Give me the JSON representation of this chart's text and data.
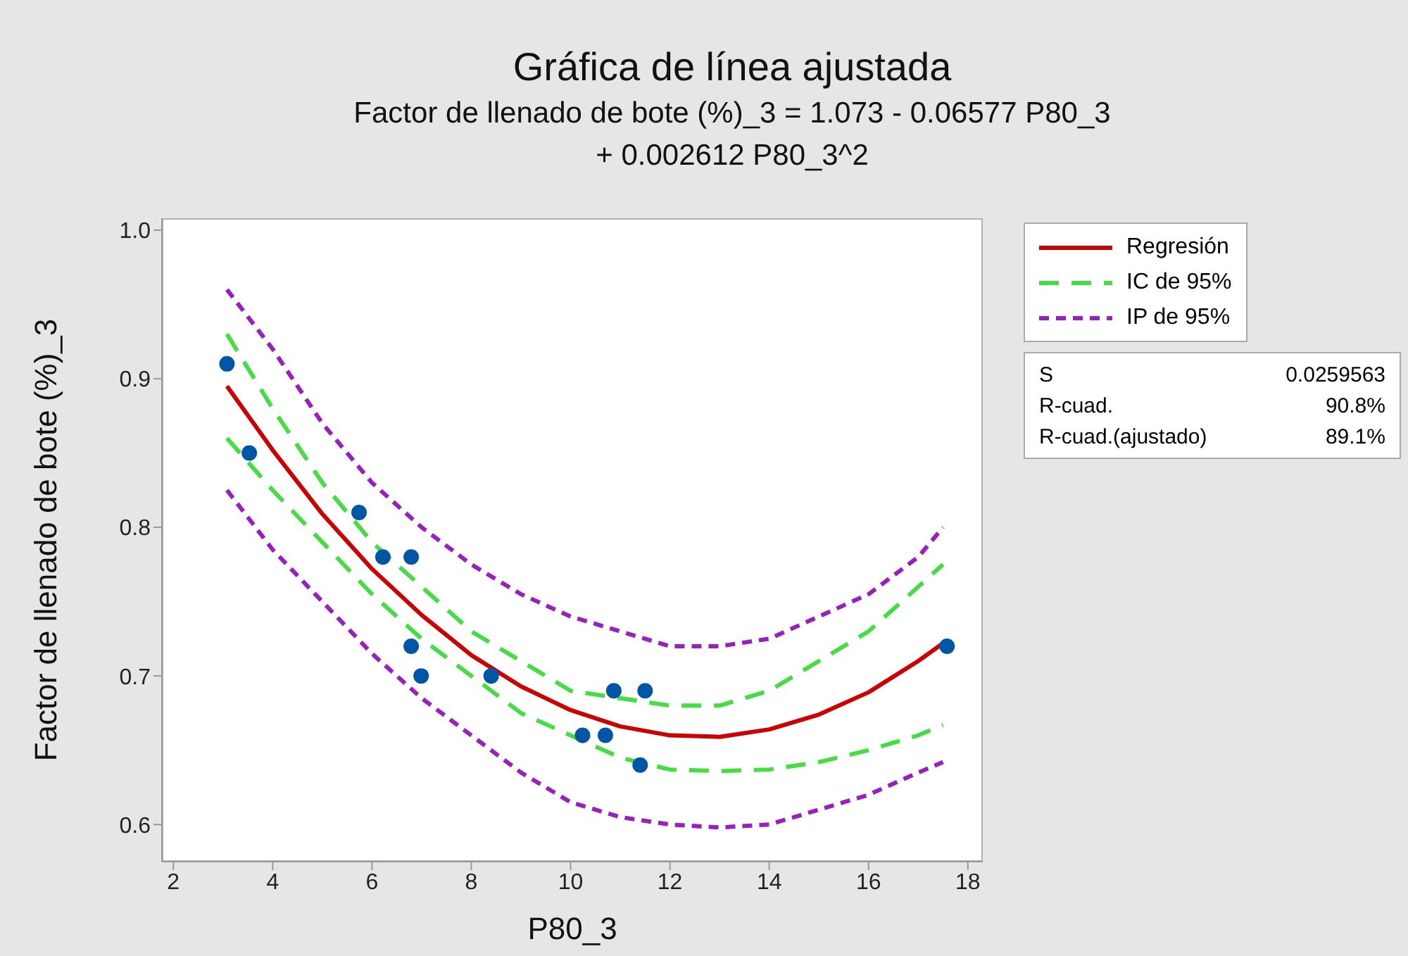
{
  "chart_data": {
    "type": "scatter",
    "title": "Gráfica de línea ajustada",
    "subtitle": "Factor de llenado de bote (%)_3 = 1.073 - 0.06577 P80_3\n+ 0.002612 P80_3^2",
    "xlabel": "P80_3",
    "ylabel": "Factor de llenado de bote (%)_3",
    "xlim": [
      1.77,
      18.3
    ],
    "xticks": [
      2,
      4,
      6,
      8,
      10,
      12,
      14,
      16,
      18
    ],
    "ylim": [
      0.575,
      1.008
    ],
    "yticks": [
      0.6,
      0.7,
      0.8,
      0.9,
      {
        "value": 1,
        "label": "1.0"
      }
    ],
    "grid": false,
    "legend": "right",
    "annotations": [
      "S",
      "0.0259563",
      "R-cuad.",
      "90.8%",
      "R-cuad.(ajustado)",
      "89.1%"
    ],
    "series": [
      {
        "color": "#0055a5",
        "marker": "circle",
        "x": [
          3.08,
          3.53,
          5.74,
          6.22,
          6.79,
          6.79,
          6.99,
          8.4,
          10.24,
          10.7,
          10.87,
          11.5,
          11.4,
          17.58
        ],
        "values": [
          0.91,
          0.85,
          0.81,
          0.78,
          0.78,
          0.72,
          0.7,
          0.7,
          0.66,
          0.66,
          0.69,
          0.69,
          0.64,
          0.72
        ]
      },
      {
        "type": "line",
        "name": "Regresión",
        "color": "#cc0000",
        "line_style": "solid",
        "x": [
          3.08,
          4,
          5,
          6,
          7,
          8,
          9,
          10,
          11,
          12,
          13,
          14,
          15,
          16,
          17,
          17.5
        ],
        "values": [
          0.895,
          0.852,
          0.809,
          0.772,
          0.741,
          0.714,
          0.693,
          0.677,
          0.666,
          0.66,
          0.659,
          0.664,
          0.674,
          0.689,
          0.71,
          0.722
        ]
      },
      {
        "type": "line",
        "name": "IC de 95%",
        "color": "#44dd44",
        "line_style": "dashed",
        "x": [
          3.08,
          4,
          5,
          6,
          7,
          8,
          9,
          10,
          11,
          12,
          13,
          14,
          15,
          16,
          17,
          17.5
        ],
        "values": [
          0.93,
          0.88,
          0.83,
          0.79,
          0.76,
          0.73,
          0.71,
          0.69,
          0.685,
          0.68,
          0.68,
          0.69,
          0.71,
          0.73,
          0.76,
          0.775
        ]
      },
      {
        "type": "line",
        "color": "#44dd44",
        "line_style": "dashed",
        "x": [
          3.08,
          4,
          5,
          6,
          7,
          8,
          9,
          10,
          11,
          12,
          13,
          14,
          15,
          16,
          17,
          17.5
        ],
        "values": [
          0.86,
          0.825,
          0.79,
          0.755,
          0.725,
          0.7,
          0.675,
          0.66,
          0.645,
          0.637,
          0.636,
          0.637,
          0.642,
          0.65,
          0.66,
          0.667
        ]
      },
      {
        "type": "line",
        "name": "IP de 95%",
        "color": "#9a1fbf",
        "line_style": "dotted",
        "x": [
          3.08,
          4,
          5,
          6,
          7,
          8,
          9,
          10,
          11,
          12,
          13,
          14,
          15,
          16,
          17,
          17.5
        ],
        "values": [
          0.96,
          0.92,
          0.87,
          0.83,
          0.8,
          0.775,
          0.755,
          0.74,
          0.73,
          0.72,
          0.72,
          0.725,
          0.74,
          0.755,
          0.78,
          0.8
        ]
      },
      {
        "type": "line",
        "color": "#9a1fbf",
        "line_style": "dotted",
        "x": [
          3.08,
          4,
          5,
          6,
          7,
          8,
          9,
          10,
          11,
          12,
          13,
          14,
          15,
          16,
          17,
          17.5
        ],
        "values": [
          0.825,
          0.785,
          0.75,
          0.715,
          0.685,
          0.66,
          0.635,
          0.615,
          0.605,
          0.6,
          0.598,
          0.6,
          0.61,
          0.62,
          0.635,
          0.642
        ]
      }
    ]
  }
}
